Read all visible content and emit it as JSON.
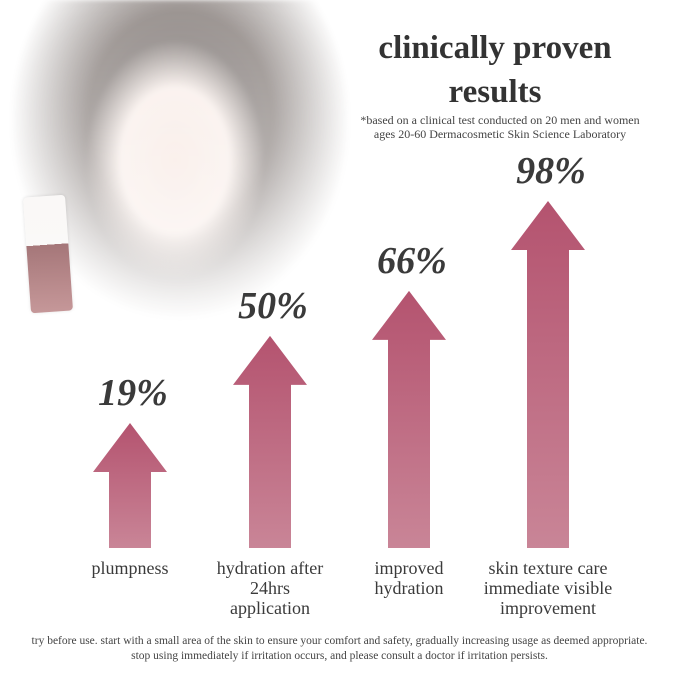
{
  "title": "clinically proven results",
  "footnote": "*based on a clinical test conducted on 20 men and women ages 20-60 Dermacosmetic Skin Science Laboratory",
  "disclaimer_line1": "try before use. start with a small area of the skin to ensure your comfort and safety, gradually increasing usage as deemed appropriate.",
  "disclaimer_line2": "stop using immediately if irritation occurs, and please consult a doctor if irritation persists.",
  "colors": {
    "arrow_top": "#b4536f",
    "arrow_bottom": "#c98597",
    "text": "#3a3a3a"
  },
  "chart_data": {
    "type": "bar",
    "categories": [
      "plumpness",
      "hydration after 24hrs application",
      "improved hydration",
      "skin texture care immediate visible improvement"
    ],
    "values": [
      19,
      50,
      66,
      98
    ],
    "value_labels": [
      "19%",
      "50%",
      "66%",
      "98%"
    ],
    "ylim": [
      0,
      100
    ],
    "grid": false
  }
}
